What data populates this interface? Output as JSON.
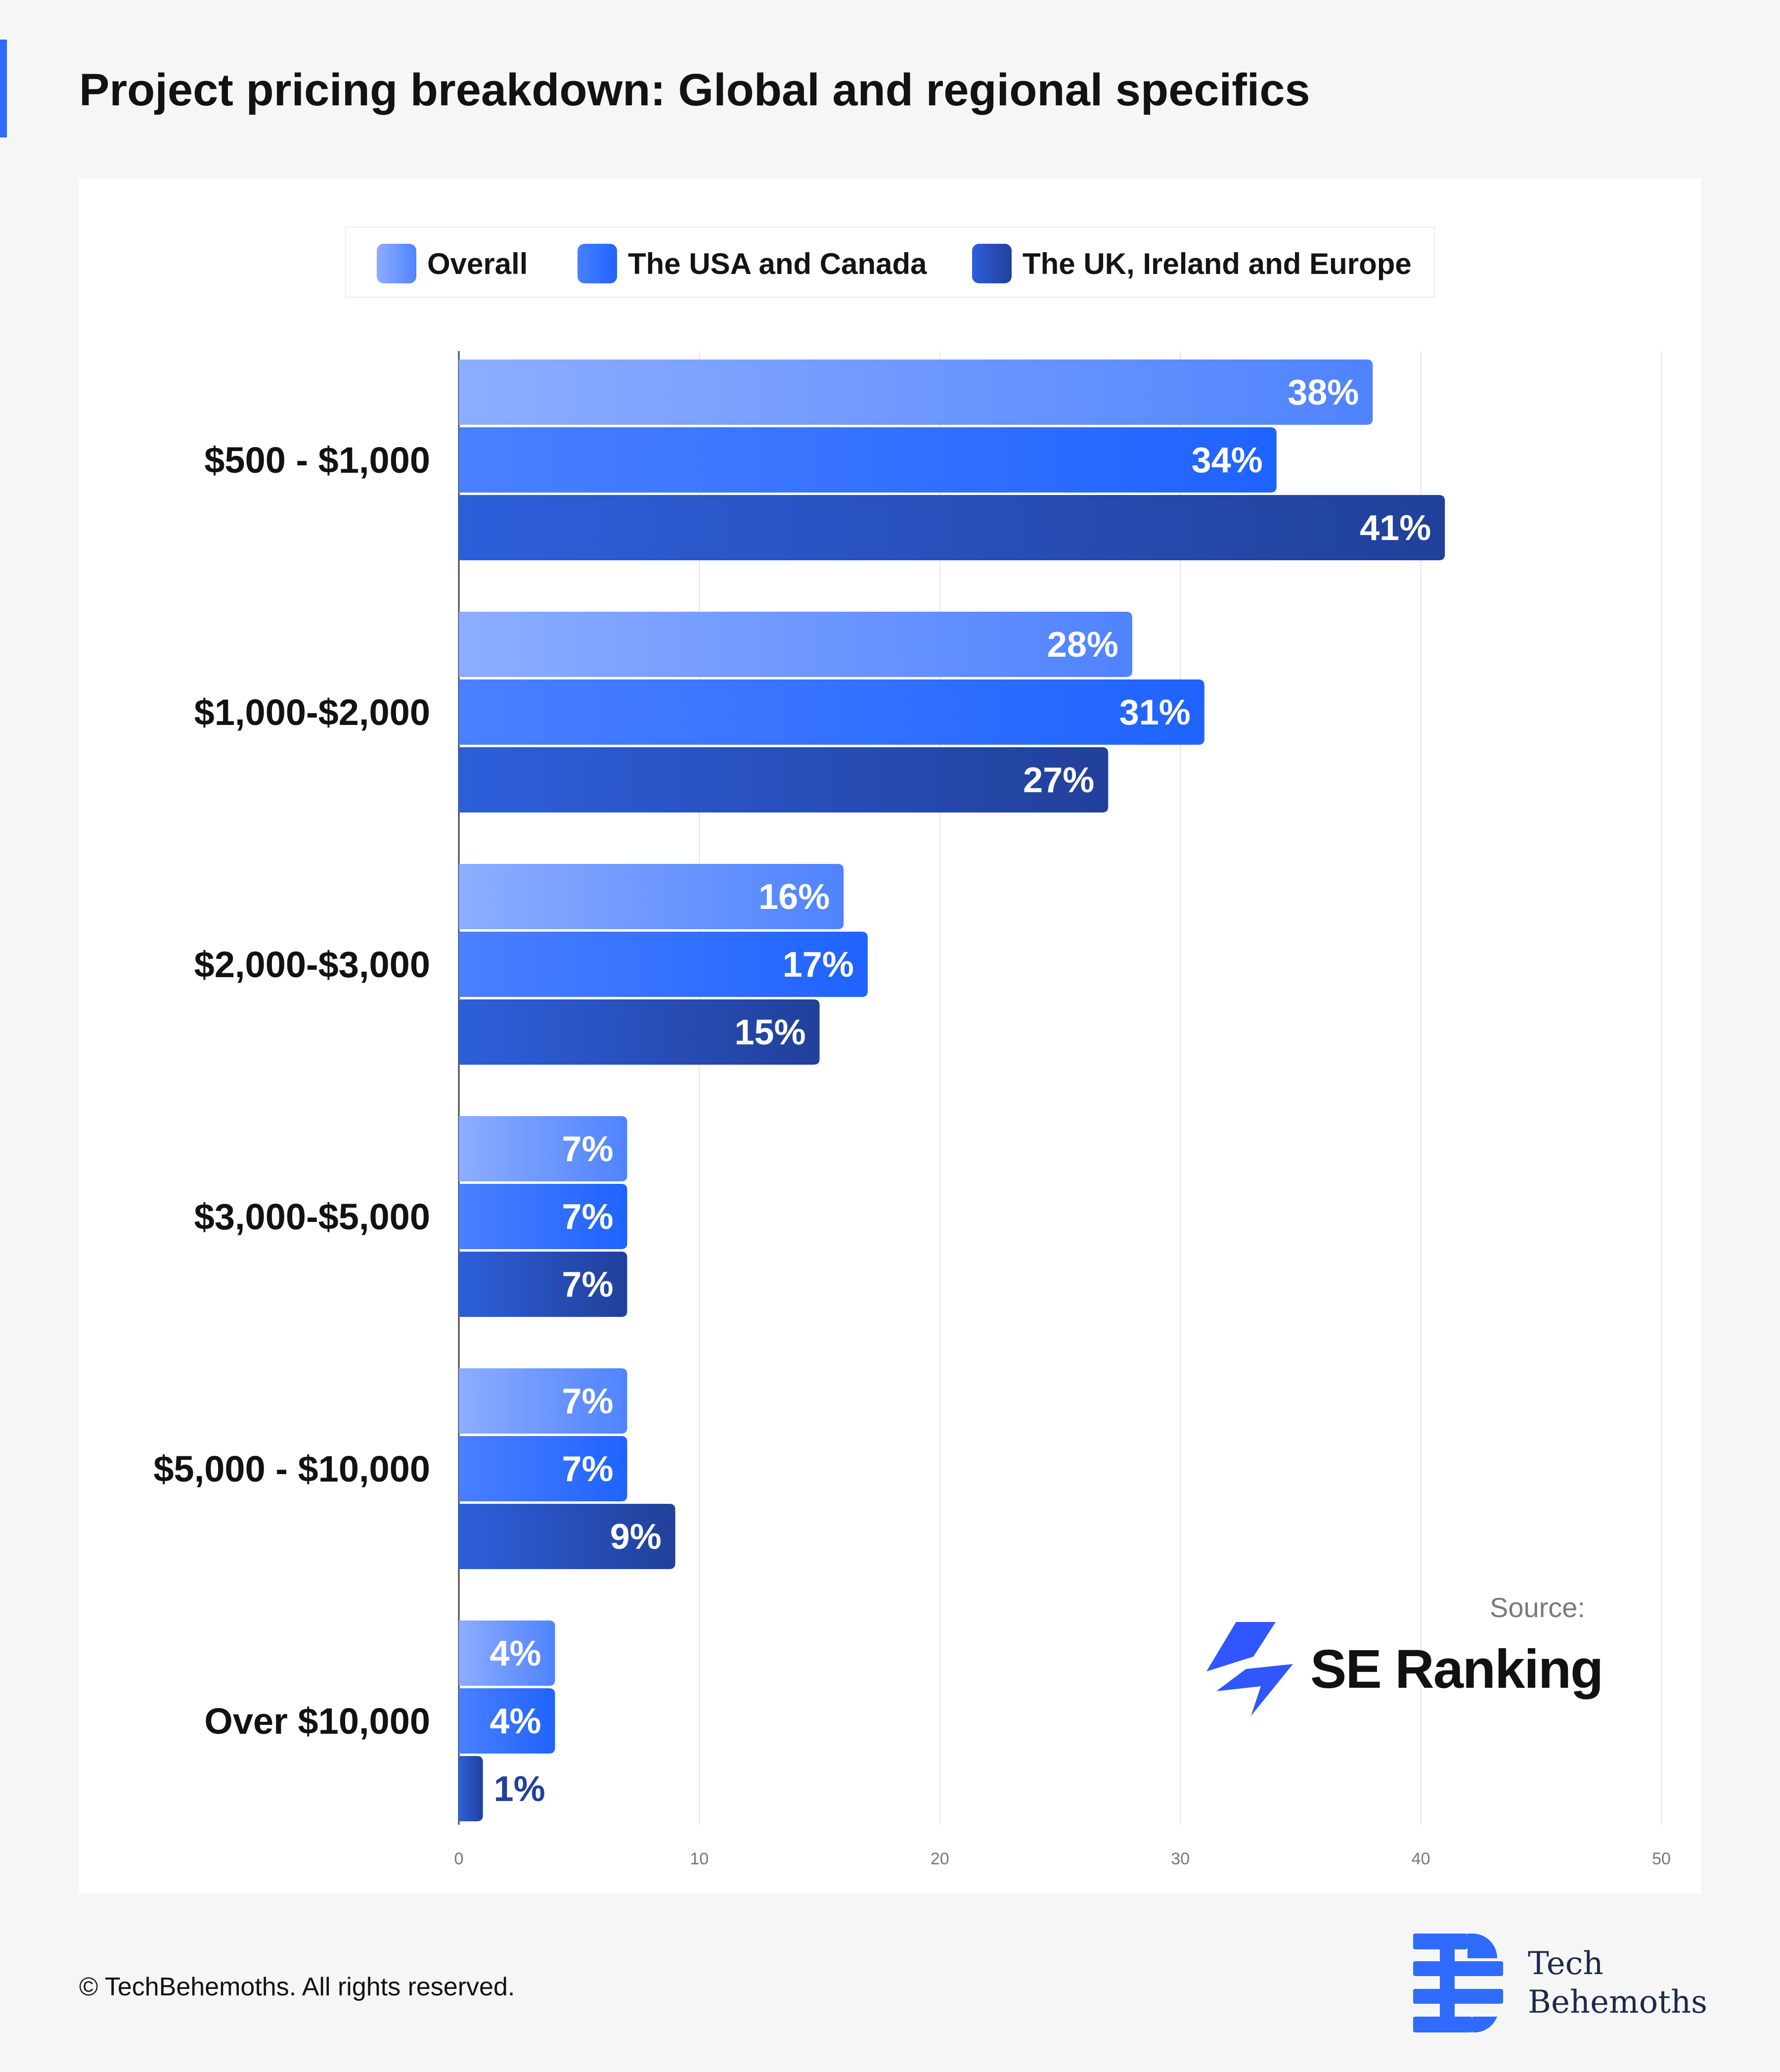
{
  "page": {
    "title": "Project pricing breakdown: Global and regional specifics",
    "copyright": "© TechBehemoths. All rights reserved.",
    "source_label": "Source:",
    "source_name": "SE Ranking",
    "brand_line1": "Tech",
    "brand_line2": "Behemoths",
    "source_logo_icon": "se-ranking-bolt-icon",
    "brand_logo_icon": "techbehemoths-tb-icon"
  },
  "chart_data": {
    "type": "bar",
    "orientation": "horizontal",
    "title": "",
    "xlabel": "",
    "ylabel": "",
    "categories": [
      "$500 - $1,000",
      "$1,000-$2,000",
      "$2,000-$3,000",
      "$3,000-$5,000",
      "$5,000 - $10,000",
      "Over $10,000"
    ],
    "series": [
      {
        "name": "Overall",
        "values": [
          38,
          28,
          16,
          7,
          7,
          4
        ],
        "color_start": "#8dadff",
        "color_end": "#4f83ff"
      },
      {
        "name": "The USA and Canada",
        "values": [
          34,
          31,
          17,
          7,
          7,
          4
        ],
        "color_start": "#4a80ff",
        "color_end": "#1f63ff"
      },
      {
        "name": "The UK, Ireland and Europe",
        "values": [
          41,
          27,
          15,
          7,
          9,
          1
        ],
        "color_start": "#2d5fdb",
        "color_end": "#21409a"
      }
    ],
    "value_suffix": "%",
    "xlim": [
      0,
      50
    ],
    "xticks": [
      0,
      10,
      20,
      30,
      40,
      50
    ],
    "grid": "vertical",
    "legend_position": "top"
  }
}
